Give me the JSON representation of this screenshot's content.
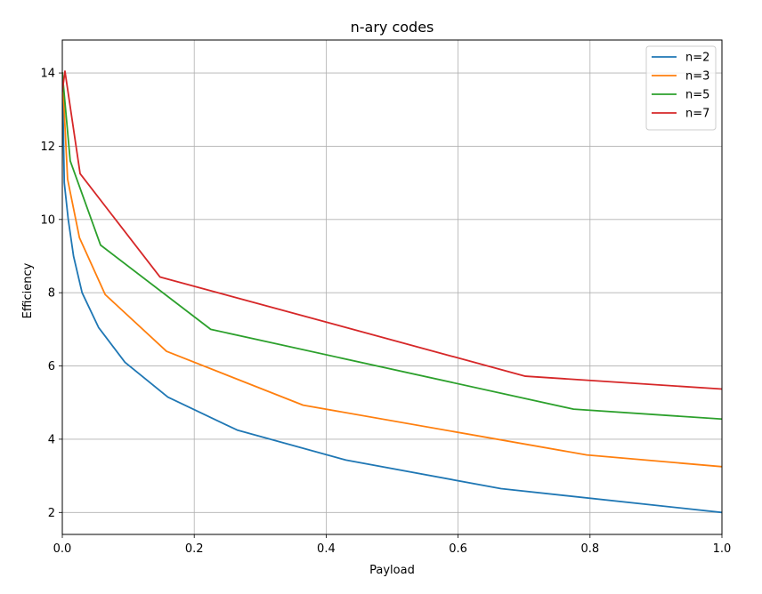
{
  "chart_data": {
    "type": "line",
    "title": "n-ary codes",
    "xlabel": "Payload",
    "ylabel": "Efficiency",
    "xlim": [
      0.0,
      1.0
    ],
    "ylim": [
      1.4,
      14.9
    ],
    "xticks": [
      0.0,
      0.2,
      0.4,
      0.6,
      0.8,
      1.0
    ],
    "xtick_labels": [
      "0.0",
      "0.2",
      "0.4",
      "0.6",
      "0.8",
      "1.0"
    ],
    "yticks": [
      2,
      4,
      6,
      8,
      10,
      12,
      14
    ],
    "ytick_labels": [
      "2",
      "4",
      "6",
      "8",
      "10",
      "12",
      "14"
    ],
    "grid": true,
    "legend_position": "top-right",
    "series": [
      {
        "name": "n=2",
        "color": "#1f77b4",
        "x": [
          0.0,
          0.003,
          0.009,
          0.017,
          0.03,
          0.055,
          0.095,
          0.16,
          0.265,
          0.43,
          0.665,
          1.0
        ],
        "y": [
          14.0,
          11.0,
          10.0,
          9.0,
          8.0,
          7.05,
          6.1,
          5.15,
          4.25,
          3.43,
          2.65,
          2.0
        ]
      },
      {
        "name": "n=3",
        "color": "#ff7f0e",
        "x": [
          0.0,
          0.008,
          0.026,
          0.065,
          0.158,
          0.365,
          0.795,
          1.0
        ],
        "y": [
          14.0,
          11.1,
          9.5,
          7.95,
          6.4,
          4.93,
          3.57,
          3.25
        ]
      },
      {
        "name": "n=5",
        "color": "#2ca02c",
        "x": [
          0.0,
          0.012,
          0.058,
          0.225,
          0.775,
          1.0
        ],
        "y": [
          14.0,
          11.6,
          9.3,
          7.0,
          4.82,
          4.55
        ]
      },
      {
        "name": "n=7",
        "color": "#d62728",
        "x": [
          0.0,
          0.004,
          0.027,
          0.148,
          0.702,
          1.0
        ],
        "y": [
          13.5,
          14.05,
          11.25,
          8.43,
          5.72,
          5.37
        ]
      }
    ]
  }
}
